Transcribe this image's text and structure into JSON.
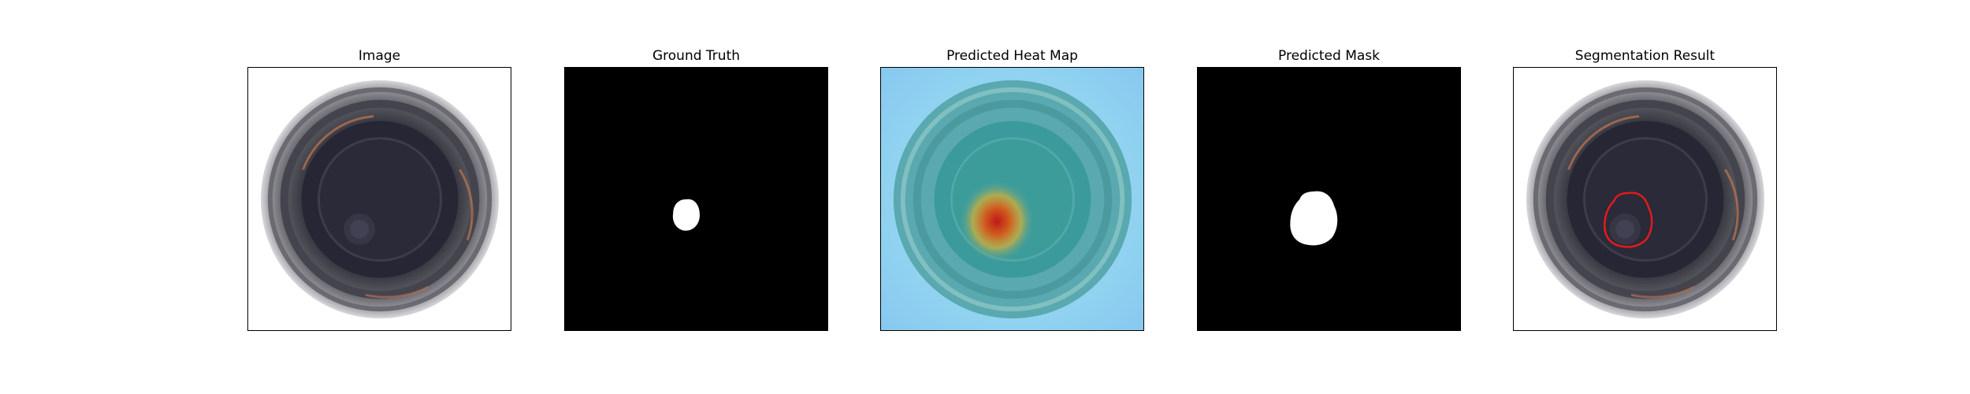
{
  "figure": {
    "panels": [
      {
        "title": "Image"
      },
      {
        "title": "Ground Truth"
      },
      {
        "title": "Predicted Heat Map"
      },
      {
        "title": "Predicted Mask"
      },
      {
        "title": "Segmentation Result"
      }
    ]
  },
  "colors": {
    "background": "#ffffff",
    "mask_background": "#000000",
    "mask_foreground": "#ffffff",
    "contour": "#e41a1c",
    "heatmap_low": "#8fd0f0",
    "heatmap_mid": "#3a9a9a",
    "heatmap_high": "#c02020"
  }
}
